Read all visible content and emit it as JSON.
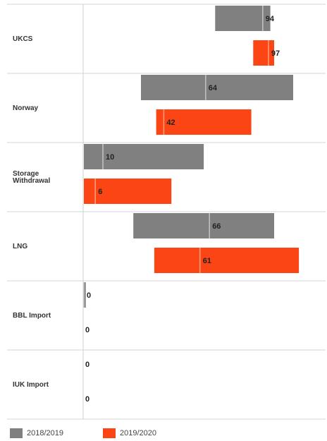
{
  "chart_data": {
    "type": "bar",
    "orientation": "horizontal",
    "style": "range",
    "categories": [
      "UKCS",
      "Norway",
      "Storage Withdrawal",
      "LNG",
      "BBL Import",
      "IUK Import"
    ],
    "category_label_lines": [
      [
        "UKCS"
      ],
      [
        "Norway"
      ],
      [
        "Storage",
        "Withdrawal"
      ],
      [
        "LNG"
      ],
      [
        "BBL Import"
      ],
      [
        "IUK Import"
      ]
    ],
    "series": [
      {
        "name": "2018/2019",
        "color": "#808080",
        "min": [
          69,
          30,
          0,
          26,
          0,
          0
        ],
        "max": [
          98,
          110,
          63,
          100,
          1,
          0
        ],
        "values": [
          94,
          64,
          10,
          66,
          0,
          0
        ]
      },
      {
        "name": "2019/2020",
        "color": "#fc4514",
        "min": [
          89,
          38,
          0,
          37,
          0,
          0
        ],
        "max": [
          100,
          88,
          46,
          113,
          0,
          0
        ],
        "values": [
          97,
          42,
          6,
          61,
          0,
          0
        ]
      }
    ],
    "legend": "bottom-left",
    "grid": false
  }
}
